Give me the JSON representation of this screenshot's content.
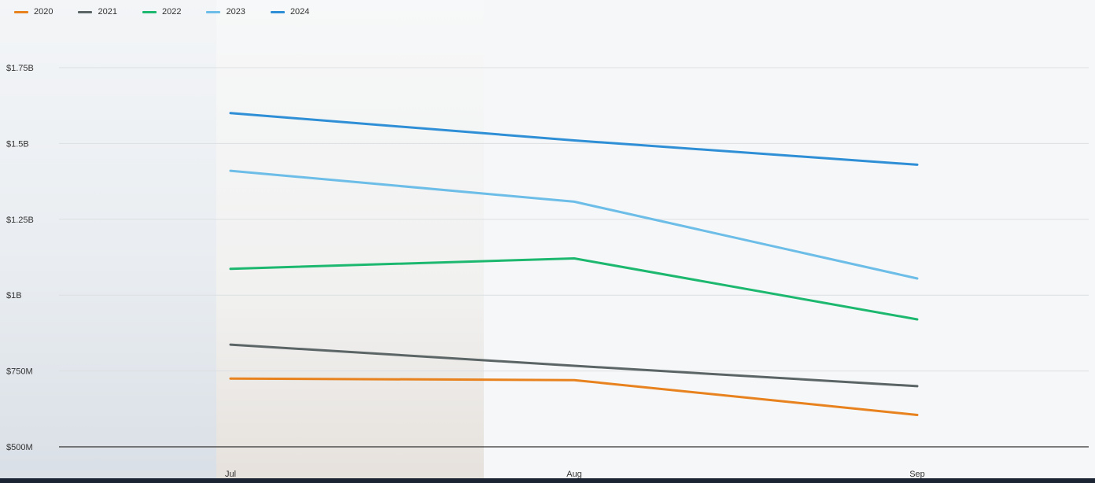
{
  "chart_data": {
    "type": "line",
    "categories": [
      "Jul",
      "Aug",
      "Sep"
    ],
    "series": [
      {
        "name": "2020",
        "color": "#e8821e",
        "values": [
          725000000,
          720000000,
          605000000
        ]
      },
      {
        "name": "2021",
        "color": "#5c6566",
        "values": [
          837000000,
          767000000,
          700000000
        ]
      },
      {
        "name": "2022",
        "color": "#1db86f",
        "values": [
          1087000000,
          1121000000,
          920000000
        ]
      },
      {
        "name": "2023",
        "color": "#6cbde7",
        "values": [
          1410000000,
          1308000000,
          1055000000
        ]
      },
      {
        "name": "2024",
        "color": "#2f8fd6",
        "values": [
          1600000000,
          1510000000,
          1430000000
        ]
      }
    ],
    "y_ticks": [
      {
        "value": 500000000,
        "label": "$500M"
      },
      {
        "value": 750000000,
        "label": "$750M"
      },
      {
        "value": 1000000000,
        "label": "$1B"
      },
      {
        "value": 1250000000,
        "label": "$1.25B"
      },
      {
        "value": 1500000000,
        "label": "$1.5B"
      },
      {
        "value": 1750000000,
        "label": "$1.75B"
      }
    ],
    "ylim": [
      500000000,
      1750000000
    ],
    "legend_position": "top-left",
    "grid": true
  }
}
